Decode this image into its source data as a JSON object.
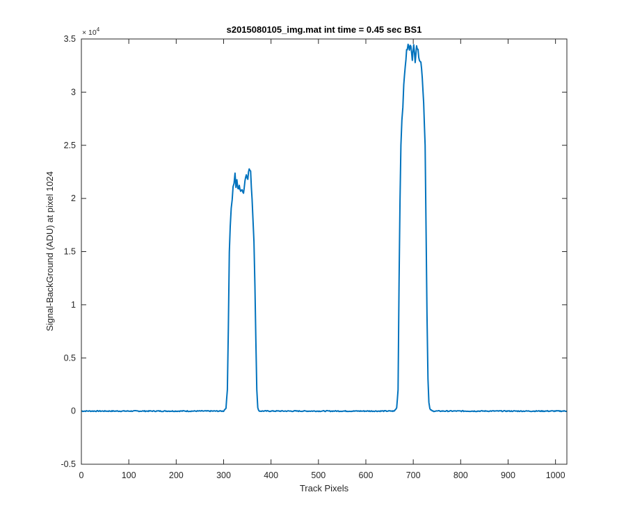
{
  "chart_data": {
    "type": "line",
    "title": "s2015080105_img.mat int time = 0.45 sec   BS1",
    "xlabel": "Track Pixels",
    "ylabel": "Signal-BackGround (ADU) at pixel 1024",
    "xlim": [
      0,
      1024
    ],
    "ylim": [
      -5000,
      35000
    ],
    "x_ticks": [
      0,
      100,
      200,
      300,
      400,
      500,
      600,
      700,
      800,
      900,
      1000
    ],
    "x_tick_labels": [
      "0",
      "100",
      "200",
      "300",
      "400",
      "500",
      "600",
      "700",
      "800",
      "900",
      "1000"
    ],
    "y_ticks": [
      -5000,
      0,
      5000,
      10000,
      15000,
      20000,
      25000,
      30000,
      35000
    ],
    "y_tick_labels": [
      "-0.5",
      "0",
      "0.5",
      "1",
      "1.5",
      "2",
      "2.5",
      "3",
      "3.5"
    ],
    "y_exponent_base": "× 10",
    "y_exponent_power": "4",
    "grid": false,
    "line_color": "#0072BD",
    "series": [
      {
        "x": [
          0,
          300,
          305,
          308,
          310,
          312,
          314,
          316,
          318,
          320,
          322,
          324,
          326,
          328,
          330,
          333,
          336,
          339,
          342,
          345,
          348,
          351,
          354,
          357,
          360,
          362,
          364,
          366,
          368,
          370,
          372,
          375,
          380,
          660,
          665,
          668,
          670,
          672,
          674,
          676,
          678,
          680,
          683,
          686,
          689,
          692,
          695,
          698,
          701,
          704,
          707,
          710,
          713,
          716,
          719,
          722,
          725,
          727,
          729,
          731,
          733,
          735,
          740,
          1024
        ],
        "y": [
          0,
          0,
          300,
          2000,
          8000,
          15000,
          17500,
          19000,
          20000,
          21000,
          21500,
          22200,
          21000,
          21800,
          20800,
          21300,
          20500,
          21000,
          20500,
          21700,
          22300,
          22000,
          22800,
          22400,
          20000,
          18000,
          16000,
          12000,
          7000,
          2000,
          300,
          0,
          0,
          0,
          300,
          2000,
          12000,
          20000,
          25000,
          27500,
          28800,
          30500,
          32500,
          33800,
          34400,
          34000,
          34500,
          33200,
          34300,
          33000,
          34500,
          33800,
          33200,
          32800,
          31500,
          29000,
          25000,
          17000,
          9000,
          3000,
          800,
          200,
          0,
          0
        ]
      }
    ]
  }
}
